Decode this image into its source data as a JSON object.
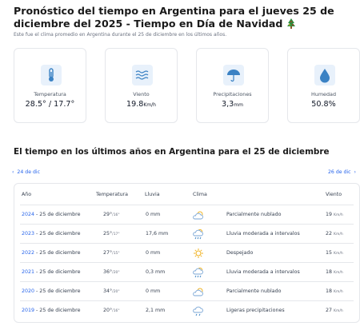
{
  "page": {
    "title": "Pronóstico del tiempo en Argentina para el jueves 25 de diciembre del 2025 - Tiempo en Día de Navidad",
    "subtitle": "Este fue el clima promedio en Argentina durante el 25 de diciembre en los últimos años."
  },
  "cards": [
    {
      "label": "Temperatura",
      "value": "28.5° / 17.7°",
      "unit": "",
      "icon": "thermometer-icon"
    },
    {
      "label": "Viento",
      "value": "19.8",
      "unit": "Km/h",
      "icon": "wind-icon"
    },
    {
      "label": "Precipitaciones",
      "value": "3,3",
      "unit": "mm",
      "icon": "umbrella-icon"
    },
    {
      "label": "Humedad",
      "value": "50.8%",
      "unit": "",
      "icon": "drop-icon"
    }
  ],
  "history": {
    "heading": "El tiempo en los últimos años en Argentina para el 25 de diciembre",
    "prev_label": "24 de dic",
    "next_label": "26 de dic",
    "headers": {
      "year": "Año",
      "temp": "Temperatura",
      "rain": "Lluvia",
      "sky": "Clima",
      "wind": "Viento"
    },
    "rows": [
      {
        "year": "2024",
        "date": " - 25 de diciembre",
        "tmax": "29°",
        "tmin": "/16°",
        "rain": "0 mm",
        "sky": "Parcialmente nublado",
        "icon": "partly-cloudy-icon",
        "wind": "19",
        "wunit": "Km/h"
      },
      {
        "year": "2023",
        "date": " - 25 de diciembre",
        "tmax": "25°",
        "tmin": "/17°",
        "rain": "17,6 mm",
        "sky": "Lluvia moderada a intervalos",
        "icon": "rain-cloud-icon",
        "wind": "22",
        "wunit": "Km/h"
      },
      {
        "year": "2022",
        "date": " - 25 de diciembre",
        "tmax": "27°",
        "tmin": "/15°",
        "rain": "0 mm",
        "sky": "Despejado",
        "icon": "sun-icon",
        "wind": "15",
        "wunit": "Km/h"
      },
      {
        "year": "2021",
        "date": " - 25 de diciembre",
        "tmax": "36°",
        "tmin": "/20°",
        "rain": "0,3 mm",
        "sky": "Lluvia moderada a intervalos",
        "icon": "rain-cloud-icon",
        "wind": "18",
        "wunit": "Km/h"
      },
      {
        "year": "2020",
        "date": " - 25 de diciembre",
        "tmax": "34°",
        "tmin": "/20°",
        "rain": "0 mm",
        "sky": "Parcialmente nublado",
        "icon": "partly-cloudy-icon",
        "wind": "18",
        "wunit": "Km/h"
      },
      {
        "year": "2019",
        "date": " - 25 de diciembre",
        "tmax": "20°",
        "tmin": "/16°",
        "rain": "2,1 mm",
        "sky": "Ligeras precipitaciones",
        "icon": "light-rain-icon",
        "wind": "27",
        "wunit": "Km/h"
      }
    ]
  },
  "colors": {
    "accent": "#2563eb",
    "icon_bg": "#e8f1fb",
    "icon_blue": "#3b82c4"
  }
}
